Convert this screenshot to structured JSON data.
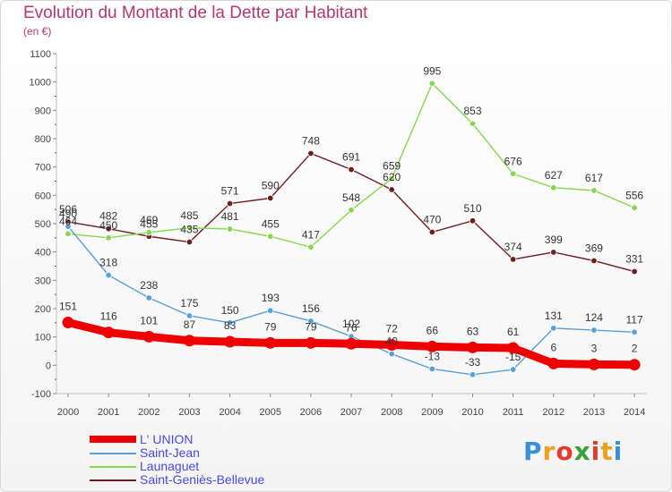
{
  "title": "Evolution du Montant de la Dette par Habitant",
  "subtitle": "(en €)",
  "logo": {
    "letters": [
      "P",
      "r",
      "o",
      "x",
      "i",
      "t",
      "i"
    ],
    "colors": [
      "#3a8fd6",
      "#f0a020",
      "#e23c2c",
      "#3aa03a",
      "#e23c2c",
      "#f0a020",
      "#3a8fd6"
    ]
  },
  "chart_data": {
    "type": "line",
    "title": "Evolution du Montant de la Dette par Habitant",
    "ylabel": "(en €)",
    "xlabel": "",
    "x": [
      "2000",
      "2001",
      "2002",
      "2003",
      "2004",
      "2005",
      "2006",
      "2007",
      "2008",
      "2009",
      "2010",
      "2011",
      "2012",
      "2013",
      "2014"
    ],
    "ylim": [
      -100,
      1100
    ],
    "yticks": [
      "-100",
      "0",
      "100",
      "200",
      "300",
      "400",
      "500",
      "600",
      "700",
      "800",
      "900",
      "1000",
      "1100"
    ],
    "grid": false,
    "legend_position": "bottom",
    "series": [
      {
        "name": "L' UNION",
        "color": "#ee0000",
        "values": [
          151,
          116,
          101,
          87,
          83,
          79,
          79,
          76,
          72,
          66,
          63,
          61,
          6,
          3,
          2
        ],
        "labels": [
          "151",
          "116",
          "101",
          "87",
          "83",
          "79",
          "79",
          "76",
          "72",
          "66",
          "63",
          "61",
          "6",
          "3",
          "2"
        ]
      },
      {
        "name": "Saint-Jean",
        "color": "#5a9fd6",
        "values": [
          490,
          318,
          238,
          175,
          150,
          193,
          156,
          102,
          40,
          -13,
          -33,
          -15,
          131,
          124,
          117
        ],
        "labels": [
          "490",
          "318",
          "238",
          "175",
          "150",
          "193",
          "156",
          "102",
          "40",
          "-13",
          "-33",
          "-15",
          "131",
          "124",
          "117"
        ]
      },
      {
        "name": "Launaguet",
        "color": "#88d650",
        "values": [
          464,
          450,
          469,
          485,
          481,
          455,
          417,
          548,
          659,
          995,
          853,
          676,
          627,
          617,
          556
        ],
        "labels": [
          "464",
          "450",
          "469",
          "485",
          "481",
          "455",
          "417",
          "548",
          "659",
          "995",
          "853",
          "676",
          "627",
          "617",
          "556"
        ]
      },
      {
        "name": "Saint-Geniès-Bellevue",
        "color": "#6b1f1f",
        "values": [
          506,
          482,
          455,
          435,
          571,
          590,
          748,
          691,
          620,
          470,
          510,
          374,
          399,
          369,
          331
        ],
        "labels": [
          "506",
          "482",
          "455",
          "435",
          "571",
          "590",
          "748",
          "691",
          "620",
          "470",
          "510",
          "374",
          "399",
          "369",
          "331"
        ]
      }
    ]
  }
}
